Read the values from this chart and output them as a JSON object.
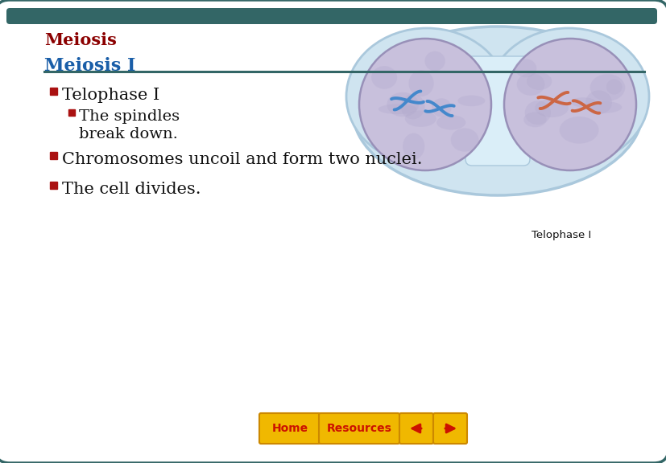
{
  "bg_color": "#ffffff",
  "border_color": "#336666",
  "title_text": "Meiosis",
  "title_color": "#8b0000",
  "subtitle_text": "Meiosis I",
  "subtitle_color": "#1a5ea8",
  "underline_color": "#336666",
  "bullet_color": "#aa1111",
  "text_color": "#111111",
  "bullet1": "Telophase I",
  "sub_bullet1a": "The spindles",
  "sub_bullet1b": "break down.",
  "bullet2": "Chromosomes uncoil and form two nuclei.",
  "bullet3": "The cell divides.",
  "caption": "Telophase I",
  "nav_bar_color": "#f0b800",
  "nav_border_color": "#cc8800",
  "top_strip_color": "#336666",
  "figsize": [
    8.28,
    5.76
  ],
  "dpi": 100
}
